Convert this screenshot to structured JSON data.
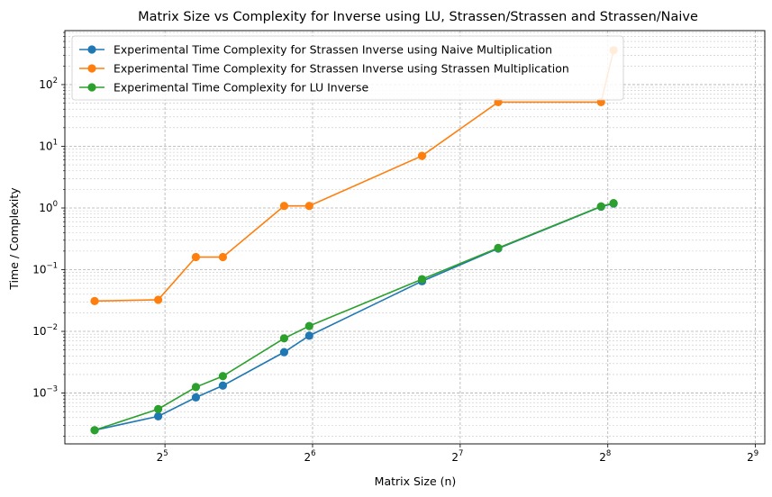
{
  "chart_data": {
    "type": "line",
    "title": "Matrix Size vs Complexity for Inverse using LU, Strassen/Strassen and Strassen/Naive",
    "xlabel": "Matrix Size (n)",
    "ylabel": "Time / Complexity",
    "xscale": "log2",
    "yscale": "log10",
    "xlim": [
      20,
      535
    ],
    "ylim": [
      0.00015,
      750
    ],
    "grid": true,
    "legend": "top-left",
    "x": [
      23,
      30,
      36,
      40,
      58,
      64,
      100,
      144,
      250,
      256
    ],
    "x_tick_labels": [
      {
        "base": "2",
        "exp": "5",
        "value": 32
      },
      {
        "base": "2",
        "exp": "6",
        "value": 64
      },
      {
        "base": "2",
        "exp": "7",
        "value": 128
      },
      {
        "base": "2",
        "exp": "8",
        "value": 256
      },
      {
        "base": "2",
        "exp": "9",
        "value": 512
      }
    ],
    "y_tick_labels": [
      {
        "base": "10",
        "exp": "−3",
        "value": 0.001
      },
      {
        "base": "10",
        "exp": "−2",
        "value": 0.01
      },
      {
        "base": "10",
        "exp": "−1",
        "value": 0.1
      },
      {
        "base": "10",
        "exp": "0",
        "value": 1
      },
      {
        "base": "10",
        "exp": "1",
        "value": 10
      },
      {
        "base": "10",
        "exp": "2",
        "value": 100
      }
    ],
    "series": [
      {
        "name": "Experimental Time Complexity for Strassen Inverse using Naive Multiplication",
        "color": "#1f77b4",
        "points": [
          [
            23,
            0.00025
          ],
          [
            31,
            0.00042
          ],
          [
            37,
            0.00085
          ],
          [
            42,
            0.00132
          ],
          [
            56,
            0.0046
          ],
          [
            63,
            0.0085
          ],
          [
            107,
            0.065
          ],
          [
            153,
            0.22
          ],
          [
            248,
            1.05
          ],
          [
            263,
            1.18
          ]
        ]
      },
      {
        "name": "Experimental Time Complexity for Strassen Inverse using Strassen Multiplication",
        "color": "#ff7f0e",
        "points": [
          [
            23,
            0.031
          ],
          [
            31,
            0.0325
          ],
          [
            37,
            0.16
          ],
          [
            42,
            0.16
          ],
          [
            56,
            1.08
          ],
          [
            63,
            1.08
          ],
          [
            107,
            7.0
          ],
          [
            153,
            52
          ],
          [
            248,
            52
          ],
          [
            263,
            360
          ]
        ]
      },
      {
        "name": "Experimental Time Complexity for LU Inverse",
        "color": "#2ca02c",
        "points": [
          [
            23,
            0.00025
          ],
          [
            31,
            0.00055
          ],
          [
            37,
            0.00125
          ],
          [
            42,
            0.00188
          ],
          [
            56,
            0.0077
          ],
          [
            63,
            0.0122
          ],
          [
            107,
            0.07
          ],
          [
            153,
            0.225
          ],
          [
            248,
            1.06
          ],
          [
            263,
            1.2
          ]
        ]
      }
    ]
  }
}
